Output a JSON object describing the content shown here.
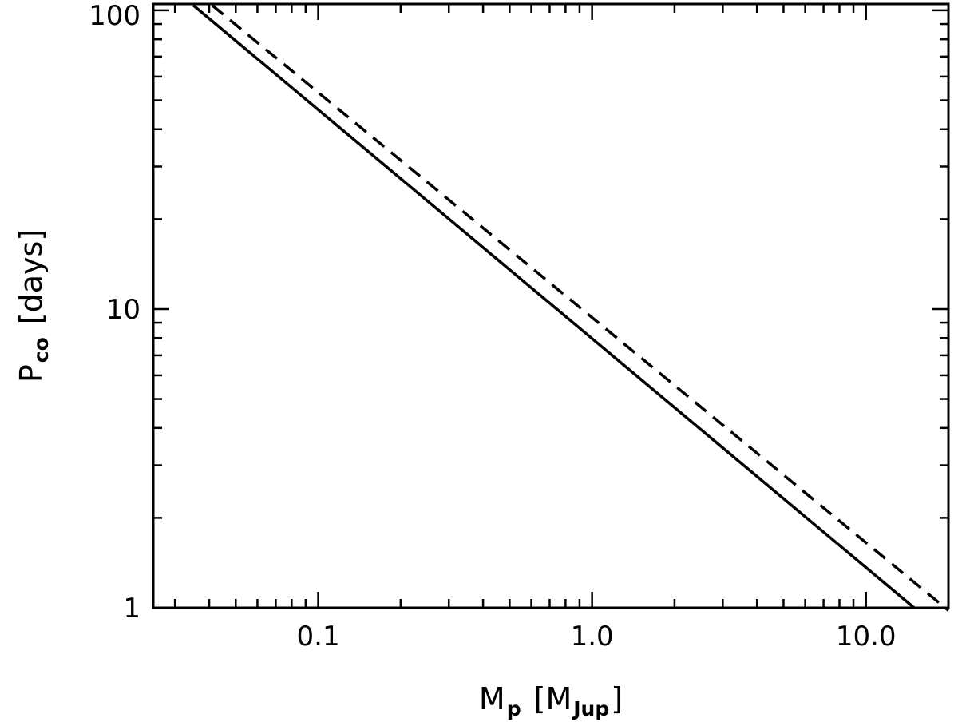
{
  "chart_data": {
    "type": "line",
    "title": "",
    "xscale": "log",
    "yscale": "log",
    "xlim": [
      0.025,
      20
    ],
    "ylim": [
      1,
      105
    ],
    "grid": false,
    "legend": "none",
    "xlabel": {
      "main": "M",
      "sub": "p",
      "bracket_main": "M",
      "bracket_sub": "Jup"
    },
    "ylabel": {
      "main": "P",
      "sub": "co",
      "unit": "[days]"
    },
    "x_ticks": [
      {
        "value": 0.1,
        "label": "0.1"
      },
      {
        "value": 1.0,
        "label": "1.0"
      },
      {
        "value": 10.0,
        "label": "10.0"
      }
    ],
    "y_ticks": [
      {
        "value": 1,
        "label": "1"
      },
      {
        "value": 10,
        "label": "10"
      },
      {
        "value": 100,
        "label": "100"
      }
    ],
    "series": [
      {
        "style": "solid",
        "x": [
          0.035,
          15.0
        ],
        "y": [
          104,
          1.0
        ],
        "color": "#000000"
      },
      {
        "style": "dashed",
        "x": [
          0.041,
          20.0
        ],
        "y": [
          104,
          0.98
        ],
        "color": "#000000"
      }
    ]
  }
}
